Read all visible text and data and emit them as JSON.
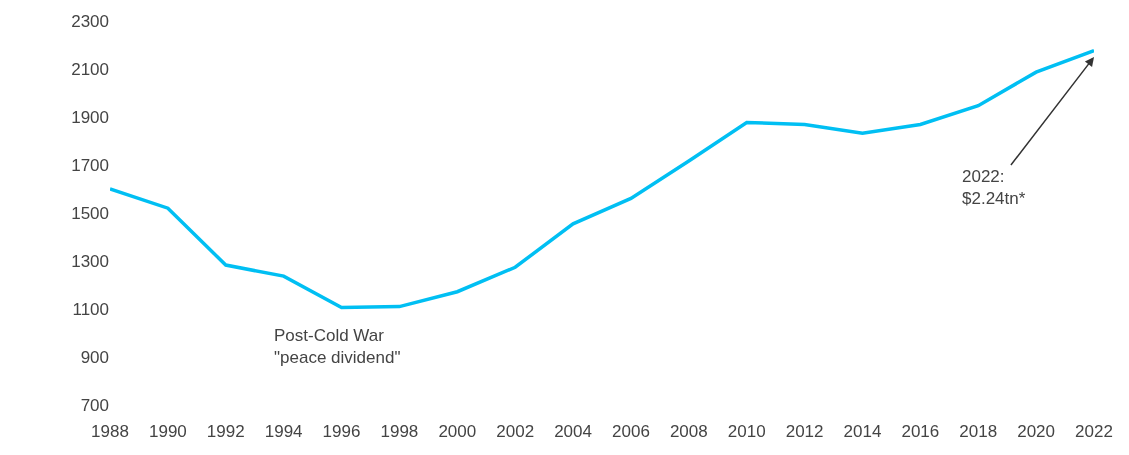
{
  "chart_data": {
    "type": "line",
    "x": [
      1988,
      1990,
      1992,
      1994,
      1996,
      1998,
      2000,
      2002,
      2004,
      2006,
      2008,
      2010,
      2012,
      2014,
      2016,
      2018,
      2020,
      2022
    ],
    "series": [
      {
        "color": "#00bff3",
        "values": [
          1600,
          1520,
          1283,
          1237,
          1106,
          1110,
          1172,
          1274,
          1455,
          1561,
          1717,
          1877,
          1869,
          1832,
          1869,
          1947,
          2087,
          2177
        ]
      }
    ],
    "xlim": [
      1988,
      2022
    ],
    "xticks": [
      1988,
      1990,
      1992,
      1994,
      1996,
      1998,
      2000,
      2002,
      2004,
      2006,
      2008,
      2010,
      2012,
      2014,
      2016,
      2018,
      2020,
      2022
    ],
    "ylim": [
      700,
      2300
    ],
    "yticks": [
      700,
      900,
      1100,
      1300,
      1500,
      1700,
      1900,
      2100,
      2300
    ],
    "annotations": [
      "Post-Cold War\n\"peace dividend\"",
      {
        "text": "2022:\n$2.24tn*",
        "x": 2022,
        "y": 2150
      }
    ],
    "legend": false,
    "marker": "none",
    "line_style": "solid"
  }
}
